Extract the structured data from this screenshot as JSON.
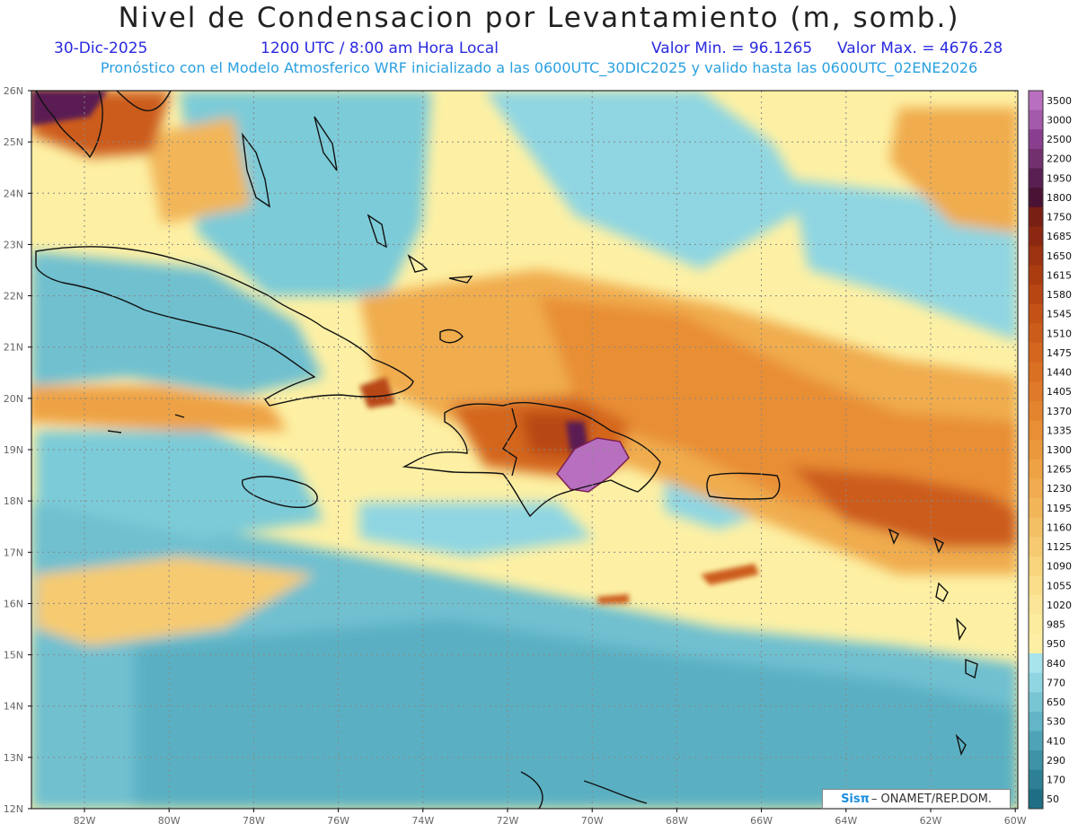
{
  "header": {
    "title": "Nivel de Condensacion por Levantamiento (m, somb.)",
    "date": "30-Dic-2025",
    "time": "1200 UTC / 8:00 am Hora Local",
    "min_label": "Valor Min. = 96.1265",
    "max_label": "Valor Max. = 4676.28",
    "forecast": "Pronóstico con el Modelo Atmosferico WRF inicializado a las 0600UTC_30DIC2025 y valido hasta las  0600UTC_02ENE2026"
  },
  "axes": {
    "lat_labels": [
      "26N",
      "25N",
      "24N",
      "23N",
      "22N",
      "21N",
      "20N",
      "19N",
      "18N",
      "17N",
      "16N",
      "15N",
      "14N",
      "13N",
      "12N"
    ],
    "lon_labels": [
      "82W",
      "80W",
      "78W",
      "76W",
      "74W",
      "72W",
      "70W",
      "68W",
      "66W",
      "64W",
      "62W",
      "60W"
    ]
  },
  "colorbar": {
    "labels": [
      "3500",
      "3000",
      "2500",
      "2200",
      "1950",
      "1800",
      "1750",
      "1685",
      "1650",
      "1615",
      "1580",
      "1545",
      "1510",
      "1475",
      "1440",
      "1405",
      "1370",
      "1335",
      "1300",
      "1265",
      "1230",
      "1195",
      "1160",
      "1125",
      "1090",
      "1055",
      "1020",
      "985",
      "950",
      "840",
      "770",
      "650",
      "530",
      "410",
      "290",
      "170",
      "50"
    ],
    "colors": [
      "#b86fc0",
      "#a35aa8",
      "#8a3f8e",
      "#73306f",
      "#5a1f52",
      "#4a1234",
      "#7a1f14",
      "#8c2812",
      "#9c3210",
      "#aa3c10",
      "#b84612",
      "#c45216",
      "#cc5c1a",
      "#d4661e",
      "#da7022",
      "#e07a28",
      "#e4842e",
      "#e88e34",
      "#eb983c",
      "#eea244",
      "#f0ac4e",
      "#f2b658",
      "#f4c064",
      "#f6ca70",
      "#f8d47c",
      "#fade8a",
      "#fbe698",
      "#fcec9e",
      "#fdf0a4",
      "#a8e4ec",
      "#8fd6e2",
      "#78c6d4",
      "#62b6c6",
      "#4ea4b6",
      "#3e92a6",
      "#2e8096",
      "#1e6e86"
    ]
  },
  "credit": {
    "logo": "Sisπ",
    "text": "– ONAMET/REP.DOM."
  }
}
